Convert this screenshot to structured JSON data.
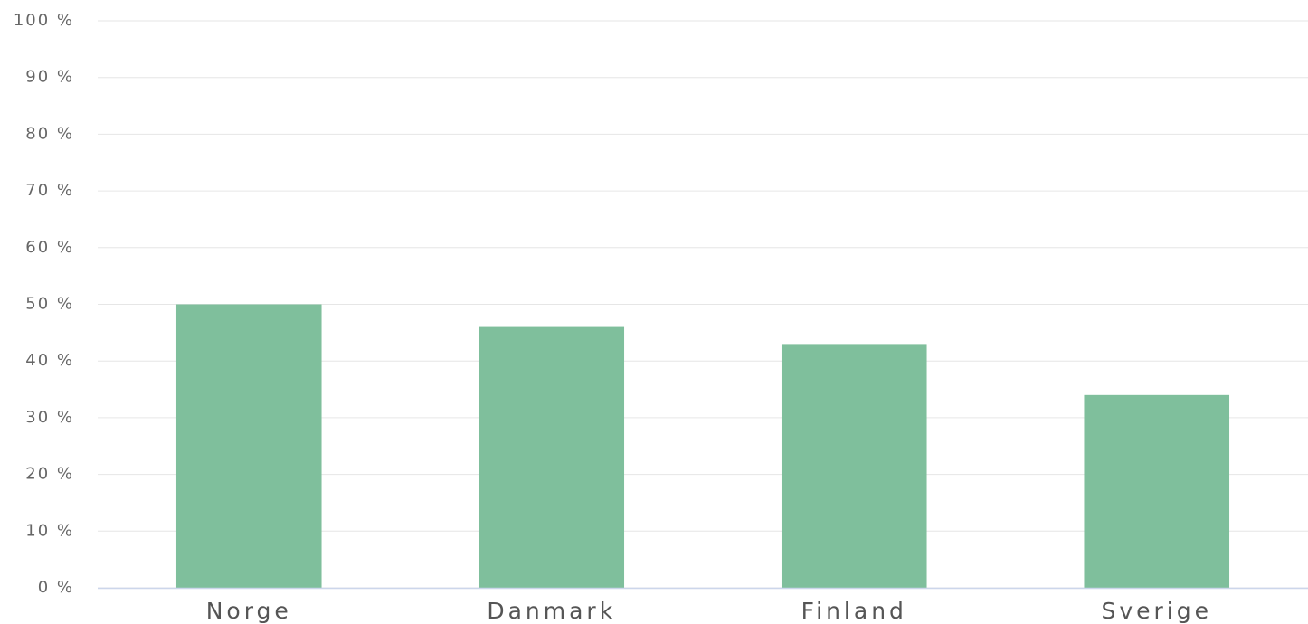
{
  "chart_data": {
    "type": "bar",
    "categories": [
      "Norge",
      "Danmark",
      "Finland",
      "Sverige"
    ],
    "values": [
      50,
      46,
      43,
      34
    ],
    "color": "#7fbf9c",
    "ylim": [
      0,
      100
    ],
    "yticks": [
      {
        "value": 0,
        "label": "0 %"
      },
      {
        "value": 10,
        "label": "10 %"
      },
      {
        "value": 20,
        "label": "20 %"
      },
      {
        "value": 30,
        "label": "30 %"
      },
      {
        "value": 40,
        "label": "40 %"
      },
      {
        "value": 50,
        "label": "50 %"
      },
      {
        "value": 60,
        "label": "60 %"
      },
      {
        "value": 70,
        "label": "70 %"
      },
      {
        "value": 80,
        "label": "80 %"
      },
      {
        "value": 90,
        "label": "90 %"
      },
      {
        "value": 100,
        "label": "100 %"
      }
    ],
    "grid": true
  }
}
